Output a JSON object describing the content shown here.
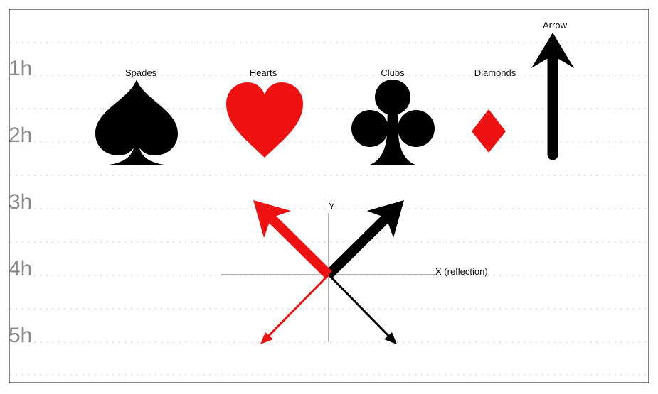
{
  "rows": [
    "1h",
    "2h",
    "3h",
    "4h",
    "5h"
  ],
  "suits": {
    "spades": "Spades",
    "hearts": "Hearts",
    "clubs": "Clubs",
    "diamonds": "Diamonds"
  },
  "arrow_label": "Arrow",
  "axes": {
    "y": "Y",
    "x": "X (reflection)"
  },
  "colors": {
    "black": "#000000",
    "red": "#ee1111",
    "axis": "#999999",
    "grid": "#bbbbbb",
    "frame": "#000000"
  }
}
